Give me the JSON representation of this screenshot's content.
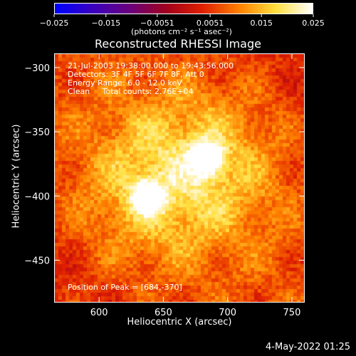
{
  "colorbar": {
    "ticks": [
      -0.025,
      -0.015,
      -0.0051,
      0.0051,
      0.015,
      0.025
    ],
    "tick_labels": [
      "−0.025",
      "−0.015",
      "−0.0051",
      "0.0051",
      "0.015",
      "0.025"
    ],
    "units": "(photons cm⁻² s⁻¹ asec⁻²)",
    "range": [
      -0.025,
      0.025
    ],
    "colormap": [
      "#0000ff",
      "#3a00c0",
      "#6a0080",
      "#a00020",
      "#e02000",
      "#ff8000",
      "#ffe040",
      "#ffffff"
    ]
  },
  "info": {
    "line1": "21-Jul-2003 19:38:00.000 to 19:43:56.000",
    "line2": "Detectors: 3F 4F 5F 6F 7F 8F, Att 0",
    "line3": "Energy Range: 6.0 - 12.0 keV",
    "line4": "Clean     Total counts: 2.76E+04",
    "peak": "Position of Peak = [684,-370]"
  },
  "footer": {
    "date": "4-May-2022 01:25"
  },
  "chart_data": {
    "type": "heatmap",
    "title": "Reconstructed RHESSI Image",
    "xlabel": "Heliocentric X (arcsec)",
    "ylabel": "Heliocentric Y (arcsec)",
    "xlim": [
      565,
      760
    ],
    "ylim": [
      -483,
      -289
    ],
    "xticks": [
      600,
      650,
      700,
      750
    ],
    "yticks": [
      -300,
      -350,
      -400,
      -450
    ],
    "xtick_labels": [
      "600",
      "650",
      "700",
      "750"
    ],
    "ytick_labels": [
      "−300",
      "−350",
      "−400",
      "−450"
    ],
    "sources": [
      {
        "x": 684,
        "y": -370,
        "peak": 0.025
      },
      {
        "x": 637,
        "y": -400,
        "peak": 0.022
      }
    ],
    "background_level": 0.003
  }
}
